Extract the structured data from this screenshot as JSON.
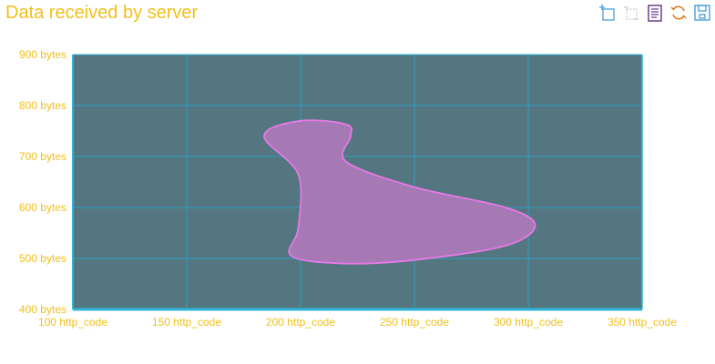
{
  "title": "Data received by server",
  "toolbox": [
    {
      "name": "zoom-icon",
      "color": "#4a9fd8"
    },
    {
      "name": "zoom-reset-icon",
      "color": "#c9c9c9"
    },
    {
      "name": "data-view-icon",
      "color": "#6a3f8e"
    },
    {
      "name": "restore-icon",
      "color": "#e07a22"
    },
    {
      "name": "save-image-icon",
      "color": "#4a9fd8"
    }
  ],
  "colors": {
    "plot_bg": "#547681",
    "grid": "#2f9fbf",
    "axis": "#2fb4d8",
    "tick_text": "#f2c01a",
    "area_fill": "#a678b4",
    "area_stroke": "#e67ae6"
  },
  "chart_data": {
    "type": "area",
    "title": "Data received by server",
    "xlim": [
      100,
      350
    ],
    "ylim": [
      400,
      900
    ],
    "x_ticks": [
      100,
      150,
      200,
      250,
      300,
      350
    ],
    "y_ticks": [
      400,
      500,
      600,
      700,
      800,
      900
    ],
    "x_tick_labels": [
      "100 http_code",
      "150 http_code",
      "200 http_code",
      "250 http_code",
      "300 http_code",
      "350 http_code"
    ],
    "y_tick_labels": [
      "400 bytes",
      "500 bytes",
      "600 bytes",
      "700 bytes",
      "800 bytes",
      "900 bytes"
    ],
    "grid": true,
    "series": [
      {
        "points": [
          [
            200,
            770
          ],
          [
            220,
            763
          ],
          [
            222,
            740
          ],
          [
            220,
            690
          ],
          [
            250,
            640
          ],
          [
            290,
            600
          ],
          [
            303,
            565
          ],
          [
            290,
            525
          ],
          [
            250,
            497
          ],
          [
            220,
            490
          ],
          [
            196,
            505
          ],
          [
            199,
            560
          ],
          [
            199,
            665
          ],
          [
            184,
            740
          ]
        ]
      }
    ]
  }
}
